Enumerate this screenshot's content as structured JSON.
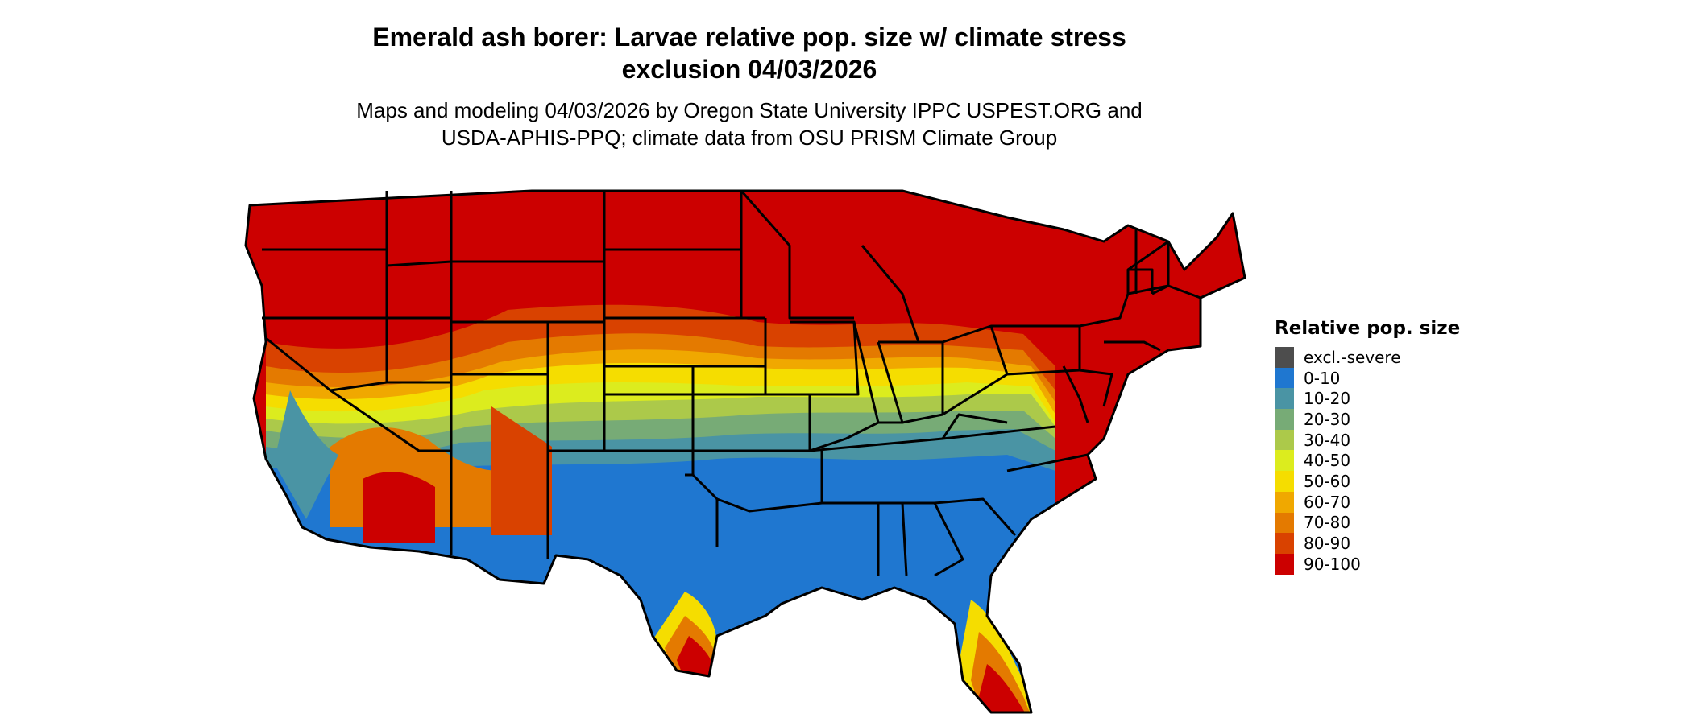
{
  "title": {
    "line1": "Emerald ash borer: Larvae relative pop. size w/ climate stress",
    "line2": "exclusion 04/03/2026"
  },
  "subtitle": {
    "line1": "Maps and modeling 04/03/2026 by Oregon State University IPPC USPEST.ORG and",
    "line2": "USDA-APHIS-PPQ; climate data from OSU PRISM Climate Group"
  },
  "legend": {
    "title": "Relative pop. size",
    "items": [
      {
        "label": "excl.-severe",
        "color": "#4d4d4d"
      },
      {
        "label": "0-10",
        "color": "#1f77d0"
      },
      {
        "label": "10-20",
        "color": "#4a94a4"
      },
      {
        "label": "20-30",
        "color": "#77ab76"
      },
      {
        "label": "30-40",
        "color": "#acc94a"
      },
      {
        "label": "40-50",
        "color": "#dcec1e"
      },
      {
        "label": "50-60",
        "color": "#f5dd00"
      },
      {
        "label": "60-70",
        "color": "#f0a800"
      },
      {
        "label": "70-80",
        "color": "#e47a00"
      },
      {
        "label": "80-90",
        "color": "#d94200"
      },
      {
        "label": "90-100",
        "color": "#cc0000"
      }
    ]
  },
  "map": {
    "region": "Contiguous United States",
    "colors": {
      "band_90_100": "#cc0000",
      "band_80_90": "#d94200",
      "band_70_80": "#e47a00",
      "band_60_70": "#f0a800",
      "band_50_60": "#f5dd00",
      "band_40_50": "#dcec1e",
      "band_30_40": "#acc94a",
      "band_20_30": "#77ab76",
      "band_10_20": "#4a94a4",
      "band_0_10": "#1f77d0",
      "borders": "#000000"
    }
  }
}
